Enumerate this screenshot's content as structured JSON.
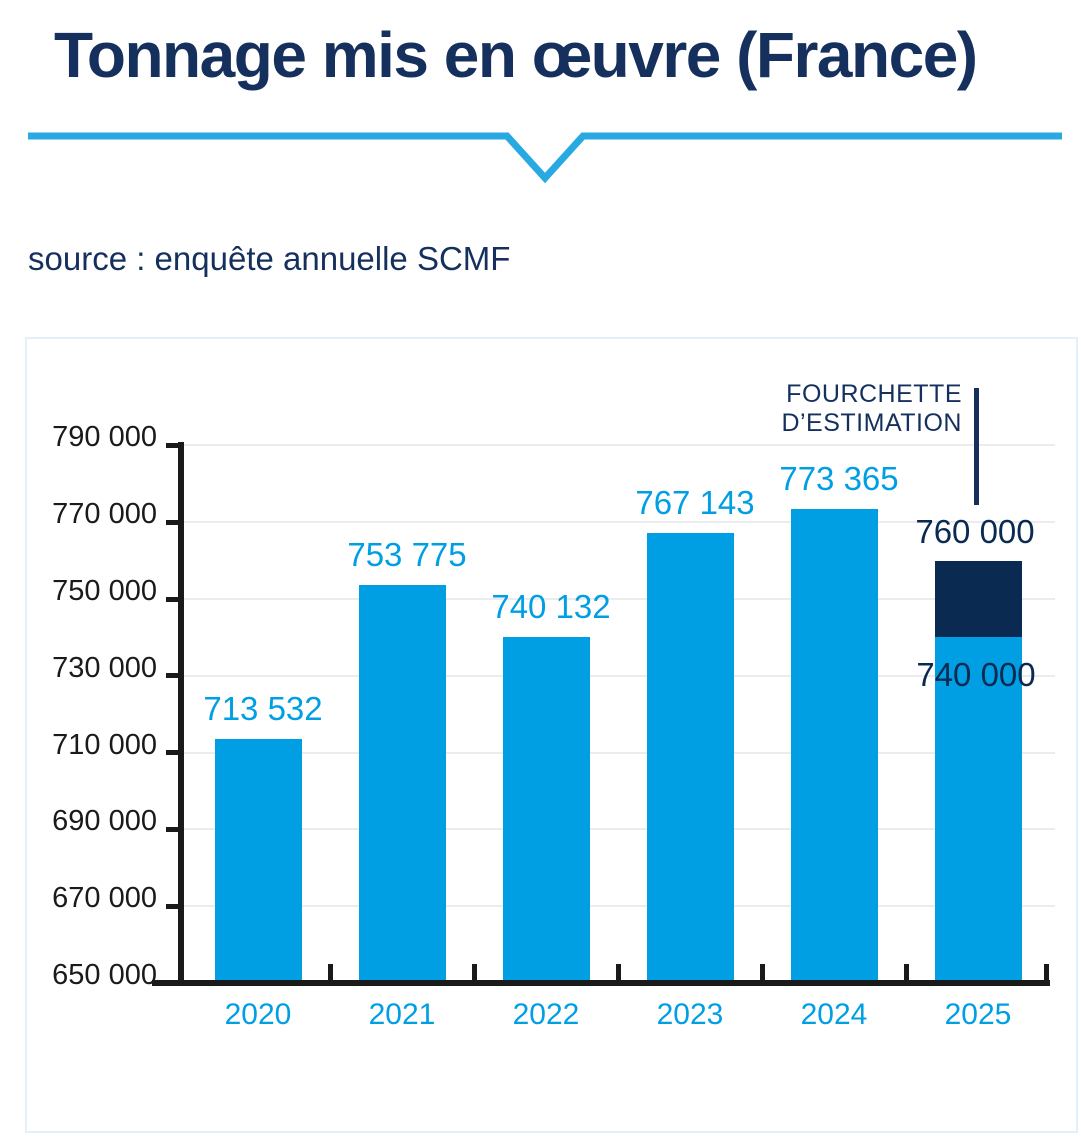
{
  "title": "Tonnage mis en œuvre (France)",
  "source": "source : enquête annuelle SCMF",
  "chart_data": {
    "type": "bar",
    "title": "Tonnage mis en œuvre (France)",
    "source": "source : enquête annuelle SCMF",
    "categories": [
      "2020",
      "2021",
      "2022",
      "2023",
      "2024",
      "2025"
    ],
    "values": [
      713532,
      753775,
      740132,
      767143,
      773365,
      null
    ],
    "value_labels": [
      "713 532",
      "753 775",
      "740 132",
      "767 143",
      "773 365",
      ""
    ],
    "estimation_range": {
      "category": "2025",
      "low": 740000,
      "high": 760000,
      "low_label": "740 000",
      "high_label": "760 000",
      "annotation_line1": "FOURCHETTE",
      "annotation_line2": "D’ESTIMATION"
    },
    "ylim": [
      650000,
      790000
    ],
    "ytick_step": 20000,
    "ytick_values": [
      650000,
      670000,
      690000,
      710000,
      730000,
      750000,
      770000,
      790000
    ],
    "ytick_labels": [
      "650 000",
      "670 000",
      "690 000",
      "710 000",
      "730 000",
      "750 000",
      "770 000",
      "790 000"
    ],
    "grid": true,
    "legend": "none",
    "colors": {
      "bar": "#009FE3",
      "estimate_bar": "#0B2A52",
      "value_label": "#009FE3",
      "year_label": "#009FE3",
      "annotation": "#16305E",
      "annotation_bar_label": "#0B2A52",
      "axis": "#1A1A1A",
      "gridline": "#ECECEC",
      "divider": "#29A9E1"
    }
  }
}
